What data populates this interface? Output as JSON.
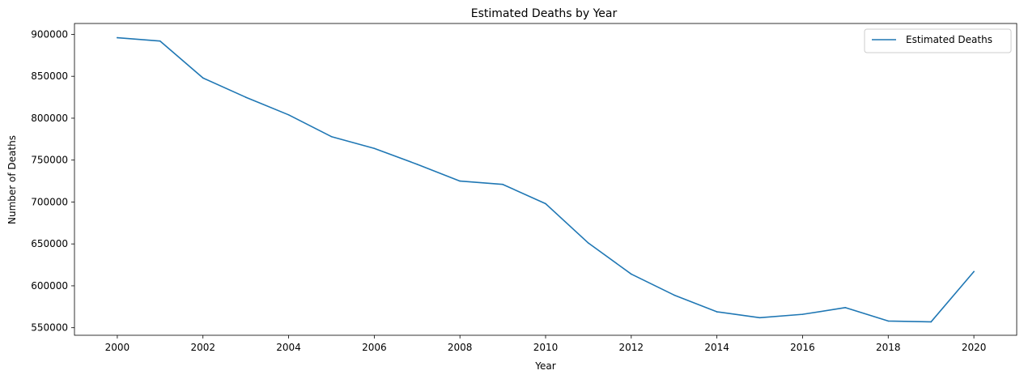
{
  "chart_data": {
    "type": "line",
    "title": "Estimated Deaths by Year",
    "xlabel": "Year",
    "ylabel": "Number of Deaths",
    "xlim": [
      1999,
      2021
    ],
    "ylim": [
      541000,
      913000
    ],
    "x_ticks": [
      2000,
      2002,
      2004,
      2006,
      2008,
      2010,
      2012,
      2014,
      2016,
      2018,
      2020
    ],
    "x_tick_labels": [
      "2000",
      "2002",
      "2004",
      "2006",
      "2008",
      "2010",
      "2012",
      "2014",
      "2016",
      "2018",
      "2020"
    ],
    "y_ticks": [
      550000,
      600000,
      650000,
      700000,
      750000,
      800000,
      850000,
      900000
    ],
    "y_tick_labels": [
      "550000",
      "600000",
      "650000",
      "700000",
      "750000",
      "800000",
      "850000",
      "900000"
    ],
    "grid": false,
    "legend_position": "top-right",
    "series": [
      {
        "name": "Estimated Deaths",
        "color": "#1f77b4",
        "x": [
          2000,
          2001,
          2002,
          2003,
          2004,
          2005,
          2006,
          2007,
          2008,
          2009,
          2010,
          2011,
          2012,
          2013,
          2014,
          2015,
          2016,
          2017,
          2018,
          2019,
          2020
        ],
        "y": [
          896000,
          892000,
          848000,
          825000,
          804000,
          778000,
          764000,
          745000,
          725000,
          721000,
          698000,
          651000,
          614000,
          589000,
          569000,
          562000,
          566000,
          574000,
          558000,
          557000,
          617000
        ]
      }
    ]
  }
}
